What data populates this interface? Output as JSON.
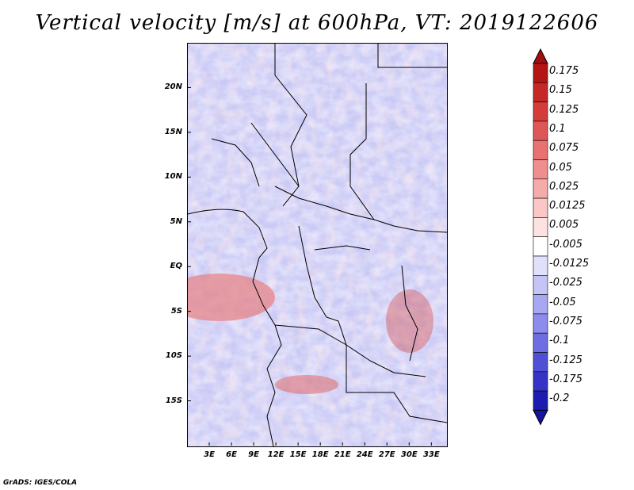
{
  "title": "Vertical velocity [m/s] at 600hPa, VT: 2019122606",
  "credit": "GrADS: IGES/COLA",
  "map": {
    "projection": "latlon",
    "lon_range": [
      0,
      35
    ],
    "lat_range": [
      -20,
      25
    ],
    "lat_ticks": [
      {
        "value": 20,
        "label": "20N"
      },
      {
        "value": 15,
        "label": "15N"
      },
      {
        "value": 10,
        "label": "10N"
      },
      {
        "value": 5,
        "label": "5N"
      },
      {
        "value": 0,
        "label": "EQ"
      },
      {
        "value": -5,
        "label": "5S"
      },
      {
        "value": -10,
        "label": "10S"
      },
      {
        "value": -15,
        "label": "15S"
      }
    ],
    "lon_ticks": [
      {
        "value": 3,
        "label": "3E"
      },
      {
        "value": 6,
        "label": "6E"
      },
      {
        "value": 9,
        "label": "9E"
      },
      {
        "value": 12,
        "label": "12E"
      },
      {
        "value": 15,
        "label": "15E"
      },
      {
        "value": 18,
        "label": "18E"
      },
      {
        "value": 21,
        "label": "21E"
      },
      {
        "value": 24,
        "label": "24E"
      },
      {
        "value": 27,
        "label": "27E"
      },
      {
        "value": 30,
        "label": "30E"
      },
      {
        "value": 33,
        "label": "33E"
      }
    ]
  },
  "colorbar": {
    "levels": [
      {
        "label": "0.175",
        "color": "#b41414"
      },
      {
        "label": "0.15",
        "color": "#c62828"
      },
      {
        "label": "0.125",
        "color": "#d43c3c"
      },
      {
        "label": "0.1",
        "color": "#de5656"
      },
      {
        "label": "0.075",
        "color": "#e87272"
      },
      {
        "label": "0.05",
        "color": "#f08e8e"
      },
      {
        "label": "0.025",
        "color": "#f6abab"
      },
      {
        "label": "0.0125",
        "color": "#fac6c6"
      },
      {
        "label": "0.005",
        "color": "#fde2e2"
      },
      {
        "label": "-0.005",
        "color": "#ffffff"
      },
      {
        "label": "-0.0125",
        "color": "#e0e0fb"
      },
      {
        "label": "-0.025",
        "color": "#c4c4f7"
      },
      {
        "label": "-0.05",
        "color": "#a8a8f2"
      },
      {
        "label": "-0.075",
        "color": "#8c8cec"
      },
      {
        "label": "-0.1",
        "color": "#6e6ee2"
      },
      {
        "label": "-0.125",
        "color": "#5050d6"
      },
      {
        "label": "-0.175",
        "color": "#3434c6"
      },
      {
        "label": "-0.2",
        "color": "#1c1cb0"
      }
    ],
    "top_color": "#a01010",
    "bottom_color": "#1414a0"
  }
}
